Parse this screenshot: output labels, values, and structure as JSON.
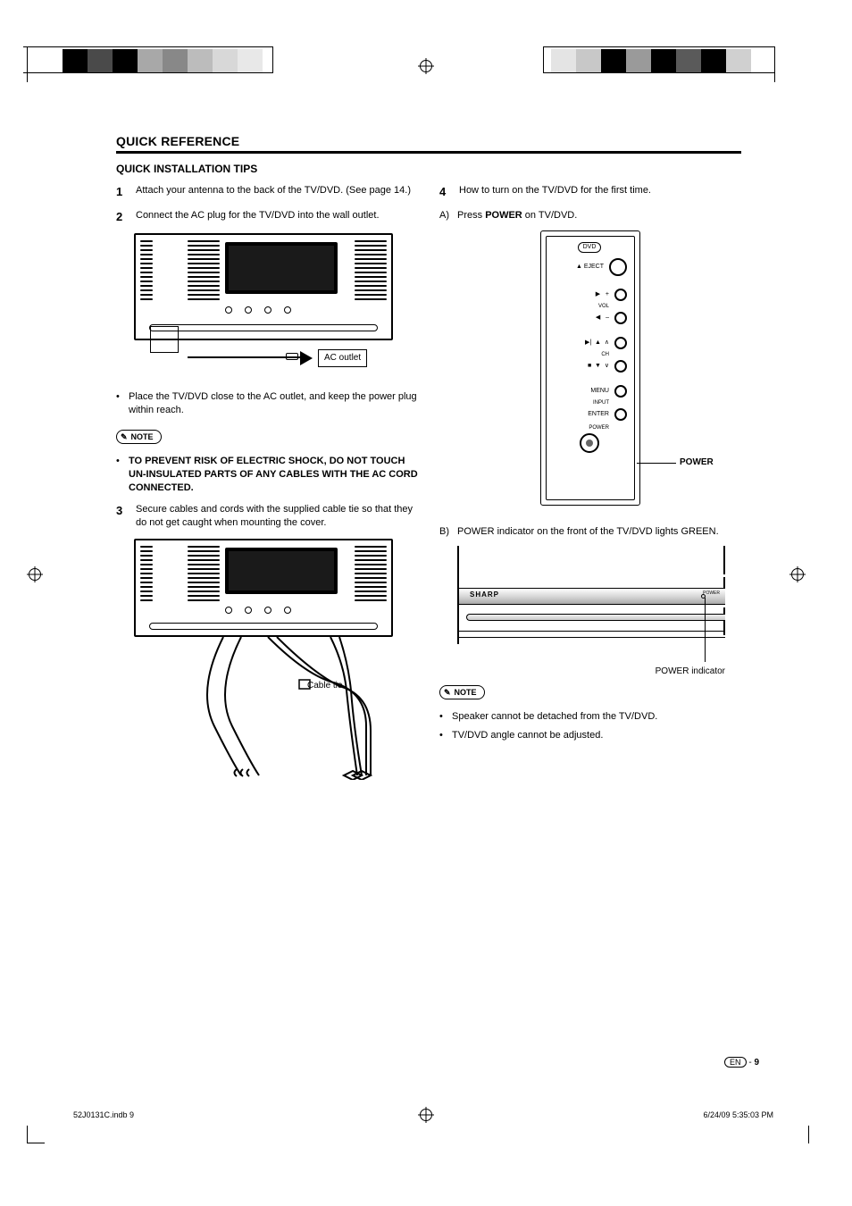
{
  "header": {
    "title": "QUICK REFERENCE",
    "subtitle": "QUICK INSTALLATION TIPS"
  },
  "steps": {
    "s1": {
      "num": "1",
      "text": "Attach your antenna to the back of the TV/DVD. (See page 14.)"
    },
    "s2": {
      "num": "2",
      "text": "Connect the AC plug for the TV/DVD into the wall outlet."
    },
    "s3": {
      "num": "3",
      "text": "Secure cables and cords with the supplied cable tie so that they do not get caught when mounting the cover."
    },
    "s4": {
      "num": "4",
      "text": "How to turn on the TV/DVD for the first time."
    }
  },
  "substeps": {
    "a": {
      "letter": "A)",
      "pre": "Press ",
      "bold": "POWER",
      "post": " on TV/DVD."
    },
    "b": {
      "letter": "B)",
      "text": "POWER indicator on the front of the TV/DVD lights GREEN."
    }
  },
  "diagram1": {
    "ac_outlet": "AC outlet"
  },
  "diagram2": {
    "cable_tie": "Cable tie"
  },
  "diagram3": {
    "dvd": "DVD",
    "eject": "EJECT",
    "vol": "VOL",
    "ch": "CH",
    "menu": "MENU",
    "input": "INPUT",
    "enter": "ENTER",
    "power_small": "POWER",
    "power_label": "POWER"
  },
  "diagram4": {
    "brand": "SHARP",
    "power_tiny": "POWER",
    "indicator": "POWER indicator"
  },
  "bullets": {
    "b1": "Place the TV/DVD close to the AC outlet, and keep the power plug within reach.",
    "warn": "TO PREVENT RISK OF ELECTRIC SHOCK, DO NOT TOUCH UN-INSULATED PARTS OF ANY CABLES WITH THE AC CORD CONNECTED.",
    "n1": "Speaker cannot be detached from the TV/DVD.",
    "n2": "TV/DVD angle cannot be adjusted."
  },
  "note_label": "NOTE",
  "footer": {
    "en": "EN",
    "dash": " - ",
    "page": "9",
    "left": "52J0131C.indb   9",
    "right": "6/24/09   5:35:03 PM"
  },
  "reg_colors_left": [
    "#000000",
    "#4a4a4a",
    "#000000",
    "#a8a8a8",
    "#888888",
    "#bcbcbc",
    "#d8d8d8",
    "#e8e8e8"
  ],
  "reg_colors_right": [
    "#e4e4e4",
    "#c8c8c8",
    "#000000",
    "#9a9a9a",
    "#000000",
    "#5a5a5a",
    "#000000",
    "#d0d0d0"
  ]
}
